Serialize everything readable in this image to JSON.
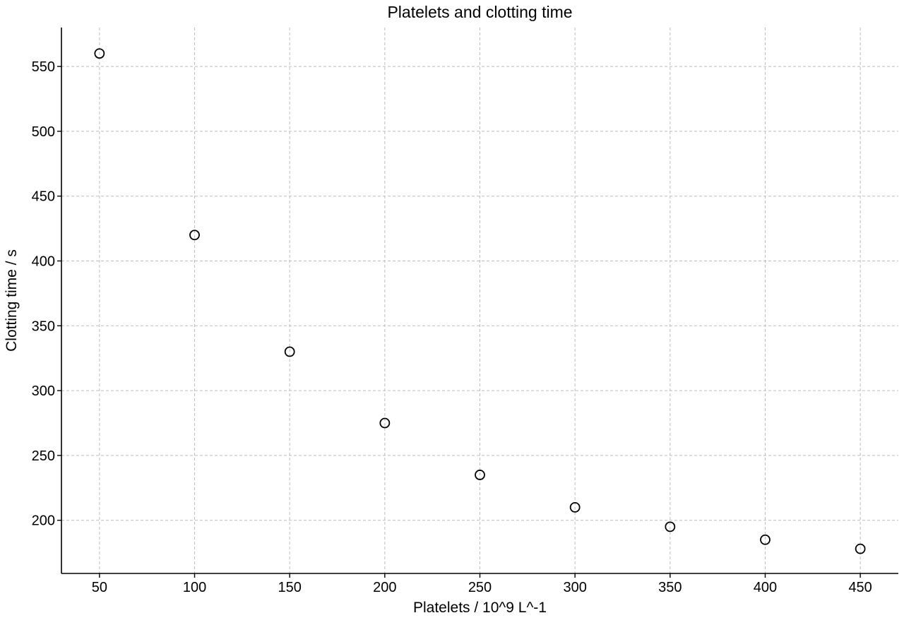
{
  "chart_data": {
    "type": "scatter",
    "title": "Platelets and clotting time",
    "xlabel": "Platelets / 10^9 L^-1",
    "ylabel": "Clotting time / s",
    "x": [
      50,
      100,
      150,
      200,
      250,
      300,
      350,
      400,
      450
    ],
    "y": [
      560,
      420,
      330,
      275,
      235,
      210,
      195,
      185,
      178
    ],
    "xlim": [
      30,
      470
    ],
    "ylim": [
      159,
      580
    ],
    "xticks": [
      50,
      100,
      150,
      200,
      250,
      300,
      350,
      400,
      450
    ],
    "yticks": [
      200,
      250,
      300,
      350,
      400,
      450,
      500,
      550
    ],
    "xtick_labels": [
      "50",
      "100",
      "150",
      "200",
      "250",
      "300",
      "350",
      "400",
      "450"
    ],
    "ytick_labels": [
      "200",
      "250",
      "300",
      "350",
      "400",
      "450",
      "500",
      "550"
    ],
    "grid": true,
    "legend": "none",
    "marker": "hollow-circle",
    "colors": {
      "marker_edge": "#000000",
      "grid": "#bdbdbd",
      "axis": "#000000"
    }
  }
}
